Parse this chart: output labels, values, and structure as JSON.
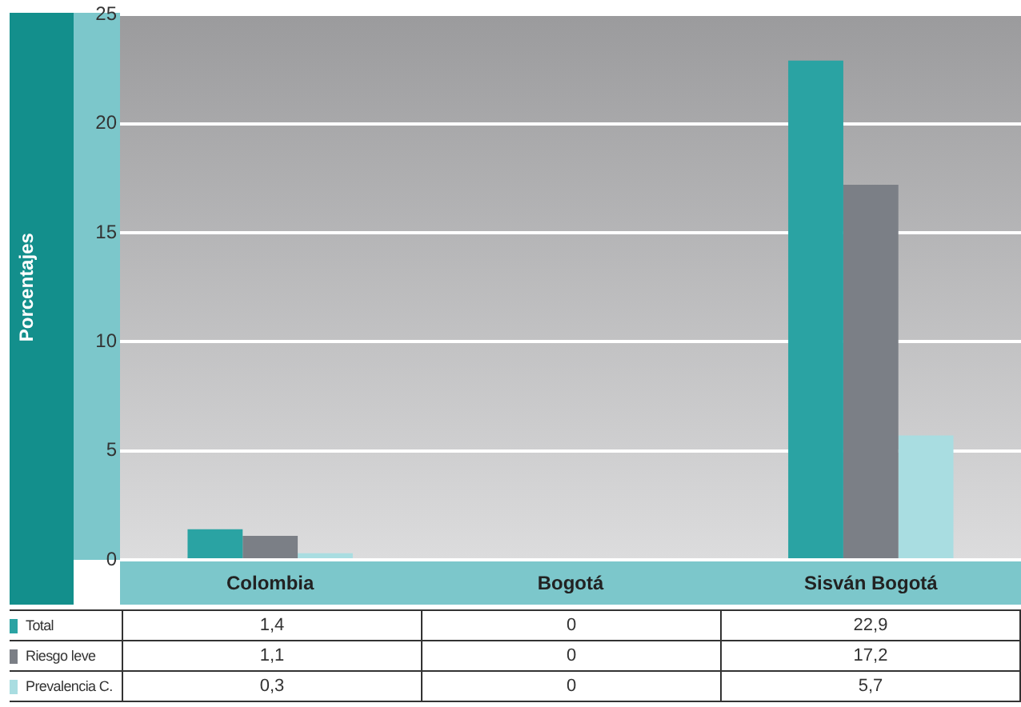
{
  "chart_data": {
    "type": "bar",
    "ylabel": "Porcentajes",
    "categories": [
      "Colombia",
      "Bogotá",
      "Sisván Bogotá"
    ],
    "series": [
      {
        "name": "Total",
        "color": "#2aa3a3",
        "values": [
          1.4,
          0,
          22.9
        ],
        "value_labels": [
          "1,4",
          "0",
          "22,9"
        ]
      },
      {
        "name": "Riesgo leve",
        "color": "#7b7f86",
        "values": [
          1.1,
          0,
          17.2
        ],
        "value_labels": [
          "1,1",
          "0",
          "17,2"
        ]
      },
      {
        "name": "Prevalencia C.",
        "color": "#a9dde1",
        "values": [
          0.3,
          0,
          5.7
        ],
        "value_labels": [
          "0,3",
          "0",
          "5,7"
        ]
      }
    ],
    "ylim": [
      0,
      25
    ],
    "yticks": [
      0,
      5,
      10,
      15,
      20,
      25
    ],
    "grid": "y",
    "legend": "bottom left"
  }
}
